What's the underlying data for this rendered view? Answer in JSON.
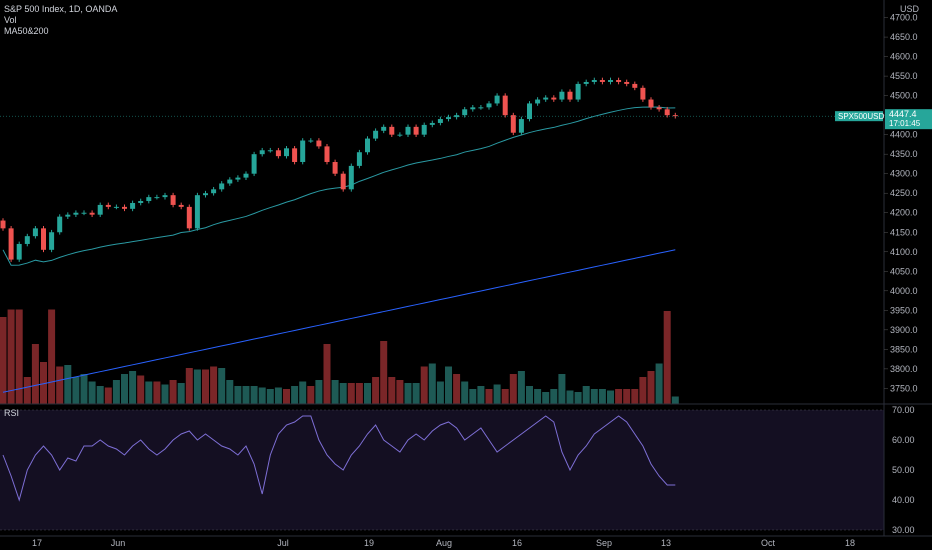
{
  "header": {
    "symbol_line": "S&P 500 Index, 1D, OANDA",
    "vol_label": "Vol",
    "ma_label": "MA50&200"
  },
  "currency": "USD",
  "badge": {
    "symbol": "SPX500USD",
    "price": "4447.4",
    "countdown": "17:01:45"
  },
  "rsi_label": "RSI",
  "colors": {
    "up": "#26a69a",
    "down": "#ef5350",
    "vol_up": "#1e5a55",
    "vol_down": "#7a2628",
    "ma50": "#2a9aa3",
    "ma200": "#2962ff",
    "rsi_line": "#7e6fd6",
    "rsi_band": "#1a1329"
  },
  "chart_data": [
    {
      "type": "candlestick",
      "title": "S&P 500 Index, 1D, OANDA",
      "ylabel": "USD",
      "ylim": [
        3710,
        4745
      ],
      "y_ticks": [
        3750,
        3800,
        3850,
        3900,
        3950,
        4000,
        4050,
        4100,
        4150,
        4200,
        4250,
        4300,
        4350,
        4400,
        4450,
        4500,
        4550,
        4600,
        4650,
        4700
      ],
      "x_tick_labels": [
        "17",
        "Jun",
        "Jul",
        "19",
        "Aug",
        "16",
        "Sep",
        "13",
        "Oct",
        "18"
      ],
      "last_price": 4447.4,
      "close": [
        4160,
        4080,
        4120,
        4140,
        4160,
        4105,
        4150,
        4190,
        4195,
        4200,
        4200,
        4195,
        4220,
        4215,
        4215,
        4210,
        4225,
        4230,
        4240,
        4240,
        4245,
        4220,
        4215,
        4160,
        4245,
        4250,
        4260,
        4275,
        4285,
        4290,
        4300,
        4350,
        4360,
        4360,
        4345,
        4365,
        4330,
        4385,
        4385,
        4370,
        4330,
        4300,
        4260,
        4320,
        4355,
        4390,
        4410,
        4420,
        4400,
        4400,
        4420,
        4400,
        4425,
        4430,
        4440,
        4445,
        4450,
        4465,
        4470,
        4470,
        4480,
        4500,
        4450,
        4405,
        4440,
        4480,
        4490,
        4495,
        4490,
        4510,
        4490,
        4530,
        4535,
        4540,
        4535,
        4540,
        4535,
        4530,
        4520,
        4490,
        4470,
        4465,
        4450,
        4447.4
      ],
      "volume": [
        {
          "v": 58,
          "d": "down"
        },
        {
          "v": 63,
          "d": "down"
        },
        {
          "v": 63,
          "d": "down"
        },
        {
          "v": 18,
          "d": "down"
        },
        {
          "v": 40,
          "d": "down"
        },
        {
          "v": 28,
          "d": "down"
        },
        {
          "v": 63,
          "d": "down"
        },
        {
          "v": 25,
          "d": "down"
        },
        {
          "v": 26,
          "d": "up"
        },
        {
          "v": 18,
          "d": "up"
        },
        {
          "v": 20,
          "d": "up"
        },
        {
          "v": 15,
          "d": "up"
        },
        {
          "v": 12,
          "d": "up"
        },
        {
          "v": 11,
          "d": "down"
        },
        {
          "v": 16,
          "d": "up"
        },
        {
          "v": 20,
          "d": "up"
        },
        {
          "v": 22,
          "d": "up"
        },
        {
          "v": 19,
          "d": "down"
        },
        {
          "v": 15,
          "d": "up"
        },
        {
          "v": 15,
          "d": "down"
        },
        {
          "v": 13,
          "d": "up"
        },
        {
          "v": 16,
          "d": "down"
        },
        {
          "v": 14,
          "d": "up"
        },
        {
          "v": 24,
          "d": "down"
        },
        {
          "v": 23,
          "d": "up"
        },
        {
          "v": 23,
          "d": "down"
        },
        {
          "v": 25,
          "d": "down"
        },
        {
          "v": 24,
          "d": "up"
        },
        {
          "v": 16,
          "d": "up"
        },
        {
          "v": 12,
          "d": "up"
        },
        {
          "v": 12,
          "d": "up"
        },
        {
          "v": 12,
          "d": "up"
        },
        {
          "v": 11,
          "d": "up"
        },
        {
          "v": 10,
          "d": "up"
        },
        {
          "v": 11,
          "d": "up"
        },
        {
          "v": 10,
          "d": "down"
        },
        {
          "v": 12,
          "d": "up"
        },
        {
          "v": 15,
          "d": "up"
        },
        {
          "v": 12,
          "d": "down"
        },
        {
          "v": 16,
          "d": "up"
        },
        {
          "v": 40,
          "d": "down"
        },
        {
          "v": 16,
          "d": "up"
        },
        {
          "v": 14,
          "d": "up"
        },
        {
          "v": 14,
          "d": "down"
        },
        {
          "v": 14,
          "d": "down"
        },
        {
          "v": 14,
          "d": "up"
        },
        {
          "v": 18,
          "d": "down"
        },
        {
          "v": 42,
          "d": "down"
        },
        {
          "v": 18,
          "d": "down"
        },
        {
          "v": 16,
          "d": "down"
        },
        {
          "v": 14,
          "d": "up"
        },
        {
          "v": 14,
          "d": "up"
        },
        {
          "v": 25,
          "d": "down"
        },
        {
          "v": 27,
          "d": "up"
        },
        {
          "v": 15,
          "d": "up"
        },
        {
          "v": 25,
          "d": "up"
        },
        {
          "v": 20,
          "d": "down"
        },
        {
          "v": 15,
          "d": "up"
        },
        {
          "v": 10,
          "d": "up"
        },
        {
          "v": 12,
          "d": "up"
        },
        {
          "v": 10,
          "d": "down"
        },
        {
          "v": 13,
          "d": "up"
        },
        {
          "v": 10,
          "d": "down"
        },
        {
          "v": 20,
          "d": "down"
        },
        {
          "v": 22,
          "d": "up"
        },
        {
          "v": 12,
          "d": "up"
        },
        {
          "v": 10,
          "d": "up"
        },
        {
          "v": 8,
          "d": "up"
        },
        {
          "v": 10,
          "d": "up"
        },
        {
          "v": 20,
          "d": "up"
        },
        {
          "v": 9,
          "d": "up"
        },
        {
          "v": 8,
          "d": "up"
        },
        {
          "v": 12,
          "d": "up"
        },
        {
          "v": 10,
          "d": "up"
        },
        {
          "v": 10,
          "d": "up"
        },
        {
          "v": 9,
          "d": "up"
        },
        {
          "v": 10,
          "d": "down"
        },
        {
          "v": 10,
          "d": "down"
        },
        {
          "v": 10,
          "d": "down"
        },
        {
          "v": 18,
          "d": "down"
        },
        {
          "v": 22,
          "d": "down"
        },
        {
          "v": 27,
          "d": "up"
        },
        {
          "v": 62,
          "d": "down"
        },
        {
          "v": 5,
          "d": "up"
        }
      ],
      "rsi": {
        "ylim": [
          28,
          72
        ],
        "y_ticks": [
          30,
          40,
          50,
          60,
          70
        ],
        "band": [
          30,
          70
        ],
        "values": [
          55,
          48,
          40,
          50,
          55,
          58,
          55,
          50,
          54,
          53,
          58,
          58,
          60,
          58,
          57,
          55,
          58,
          60,
          57,
          55,
          57,
          60,
          62,
          63,
          60,
          62,
          60,
          58,
          57,
          55,
          58,
          52,
          42,
          55,
          62,
          65,
          66,
          68,
          68,
          60,
          55,
          52,
          50,
          55,
          58,
          62,
          65,
          60,
          58,
          56,
          60,
          62,
          60,
          63,
          65,
          66,
          64,
          60,
          62,
          64,
          60,
          56,
          58,
          60,
          62,
          64,
          66,
          68,
          66,
          56,
          50,
          55,
          58,
          62,
          64,
          66,
          68,
          66,
          62,
          58,
          52,
          48,
          45,
          45
        ]
      }
    }
  ]
}
